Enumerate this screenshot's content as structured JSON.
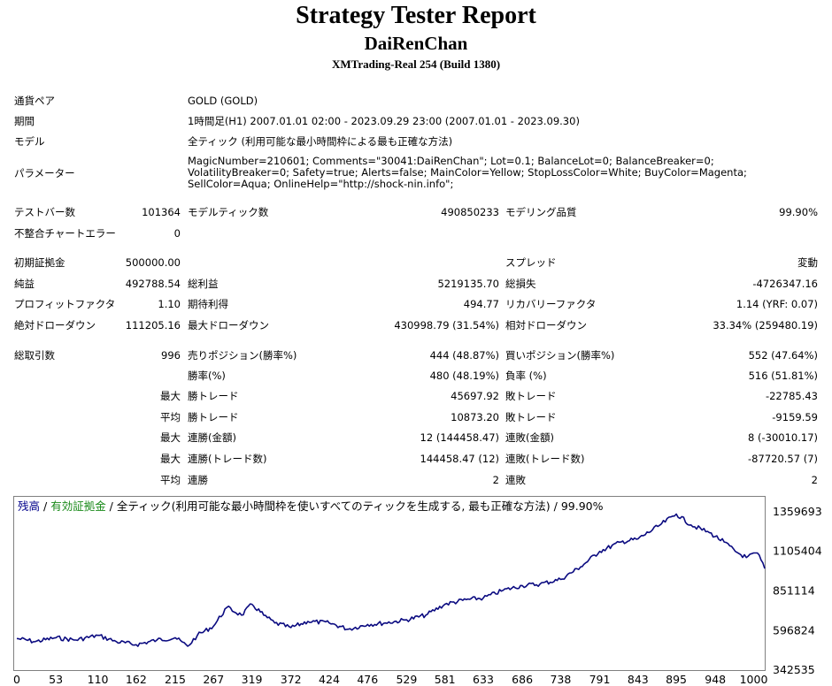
{
  "header": {
    "title": "Strategy Tester Report",
    "subtitle": "DaiRenChan",
    "build": "XMTrading-Real 254 (Build 1380)"
  },
  "info": {
    "symbol_label": "通貨ペア",
    "symbol_value": "GOLD (GOLD)",
    "period_label": "期間",
    "period_value": "1時間足(H1) 2007.01.01 02:00 - 2023.09.29 23:00 (2007.01.01 - 2023.09.30)",
    "model_label": "モデル",
    "model_value": "全ティック (利用可能な最小時間枠による最も正確な方法)",
    "params_label": "パラメーター",
    "params_value": "MagicNumber=210601; Comments=\"30041:DaiRenChan\"; Lot=0.1; BalanceLot=0; BalanceBreaker=0; VolatilityBreaker=0; Safety=true; Alerts=false; MainColor=Yellow; StopLossColor=White; BuyColor=Magenta; SellColor=Aqua; OnlineHelp=\"http://shock-nin.info\";"
  },
  "stats": {
    "bars_label": "テストバー数",
    "bars_value": "101364",
    "ticks_label": "モデルティック数",
    "ticks_value": "490850233",
    "quality_label": "モデリング品質",
    "quality_value": "99.90%",
    "mismatch_label": "不整合チャートエラー",
    "mismatch_value": "0",
    "deposit_label": "初期証拠金",
    "deposit_value": "500000.00",
    "spread_label": "スプレッド",
    "spread_value": "変動",
    "net_label": "純益",
    "net_value": "492788.54",
    "gross_profit_label": "総利益",
    "gross_profit_value": "5219135.70",
    "gross_loss_label": "総損失",
    "gross_loss_value": "-4726347.16",
    "pf_label": "プロフィットファクタ",
    "pf_value": "1.10",
    "expected_label": "期待利得",
    "expected_value": "494.77",
    "recovery_label": "リカバリーファクタ",
    "recovery_value": "1.14 (YRF: 0.07)",
    "abs_dd_label": "絶対ドローダウン",
    "abs_dd_value": "111205.16",
    "max_dd_label": "最大ドローダウン",
    "max_dd_value": "430998.79 (31.54%)",
    "rel_dd_label": "相対ドローダウン",
    "rel_dd_value": "33.34% (259480.19)",
    "total_label": "総取引数",
    "total_value": "996",
    "short_label": "売りポジション(勝率%)",
    "short_value": "444 (48.87%)",
    "long_label": "買いポジション(勝率%)",
    "long_value": "552 (47.64%)",
    "win_label": "勝率(%)",
    "win_value": "480 (48.19%)",
    "loss_label": "負率 (%)",
    "loss_value": "516 (51.81%)",
    "rows": [
      {
        "prefix": "最大",
        "a_label": "勝トレード",
        "a_value": "45697.92",
        "b_label": "敗トレード",
        "b_value": "-22785.43"
      },
      {
        "prefix": "平均",
        "a_label": "勝トレード",
        "a_value": "10873.20",
        "b_label": "敗トレード",
        "b_value": "-9159.59"
      },
      {
        "prefix": "最大",
        "a_label": "連勝(金額)",
        "a_value": "12 (144458.47)",
        "b_label": "連敗(金額)",
        "b_value": "8 (-30010.17)"
      },
      {
        "prefix": "最大",
        "a_label": "連勝(トレード数)",
        "a_value": "144458.47 (12)",
        "b_label": "連敗(トレード数)",
        "b_value": "-87720.57 (7)"
      },
      {
        "prefix": "平均",
        "a_label": "連勝",
        "a_value": "2",
        "b_label": "連敗",
        "b_value": "2"
      }
    ]
  },
  "legend": {
    "balance": "残高",
    "sep1": " / ",
    "equity": "有効証拠金",
    "rest": " / 全ティック(利用可能な最小時間枠を使いすべてのティックを生成する, 最も正確な方法) / 99.90%",
    "balance_color": "#00008b",
    "equity_color": "#1a8a1a"
  },
  "chart_data": {
    "type": "line",
    "series": [
      {
        "name": "残高",
        "color": "#0a0a80",
        "x": [
          0,
          25,
          53,
          80,
          110,
          135,
          162,
          190,
          215,
          232,
          245,
          267,
          285,
          305,
          319,
          335,
          350,
          372,
          395,
          424,
          450,
          476,
          500,
          529,
          555,
          581,
          610,
          633,
          660,
          686,
          710,
          738,
          765,
          791,
          820,
          843,
          870,
          895,
          915,
          940,
          960,
          975,
          990,
          1005,
          1015
        ],
        "y": [
          540000,
          520000,
          545000,
          530000,
          560000,
          520000,
          500000,
          530000,
          545000,
          490000,
          560000,
          620000,
          740000,
          690000,
          760000,
          690000,
          640000,
          610000,
          650000,
          640000,
          600000,
          630000,
          640000,
          660000,
          690000,
          760000,
          790000,
          800000,
          850000,
          880000,
          890000,
          920000,
          1000000,
          1100000,
          1160000,
          1180000,
          1260000,
          1340000,
          1270000,
          1220000,
          1160000,
          1100000,
          1060000,
          1090000,
          990000
        ]
      }
    ],
    "xlim": [
      0,
      1015
    ],
    "ylim": [
      342535,
      1359693
    ],
    "y_ticks": [
      1359693,
      1105404,
      851114,
      596824,
      342535
    ],
    "x_ticks": [
      0,
      53,
      110,
      162,
      215,
      267,
      319,
      372,
      424,
      476,
      529,
      581,
      633,
      686,
      738,
      791,
      843,
      895,
      948,
      1000
    ]
  }
}
